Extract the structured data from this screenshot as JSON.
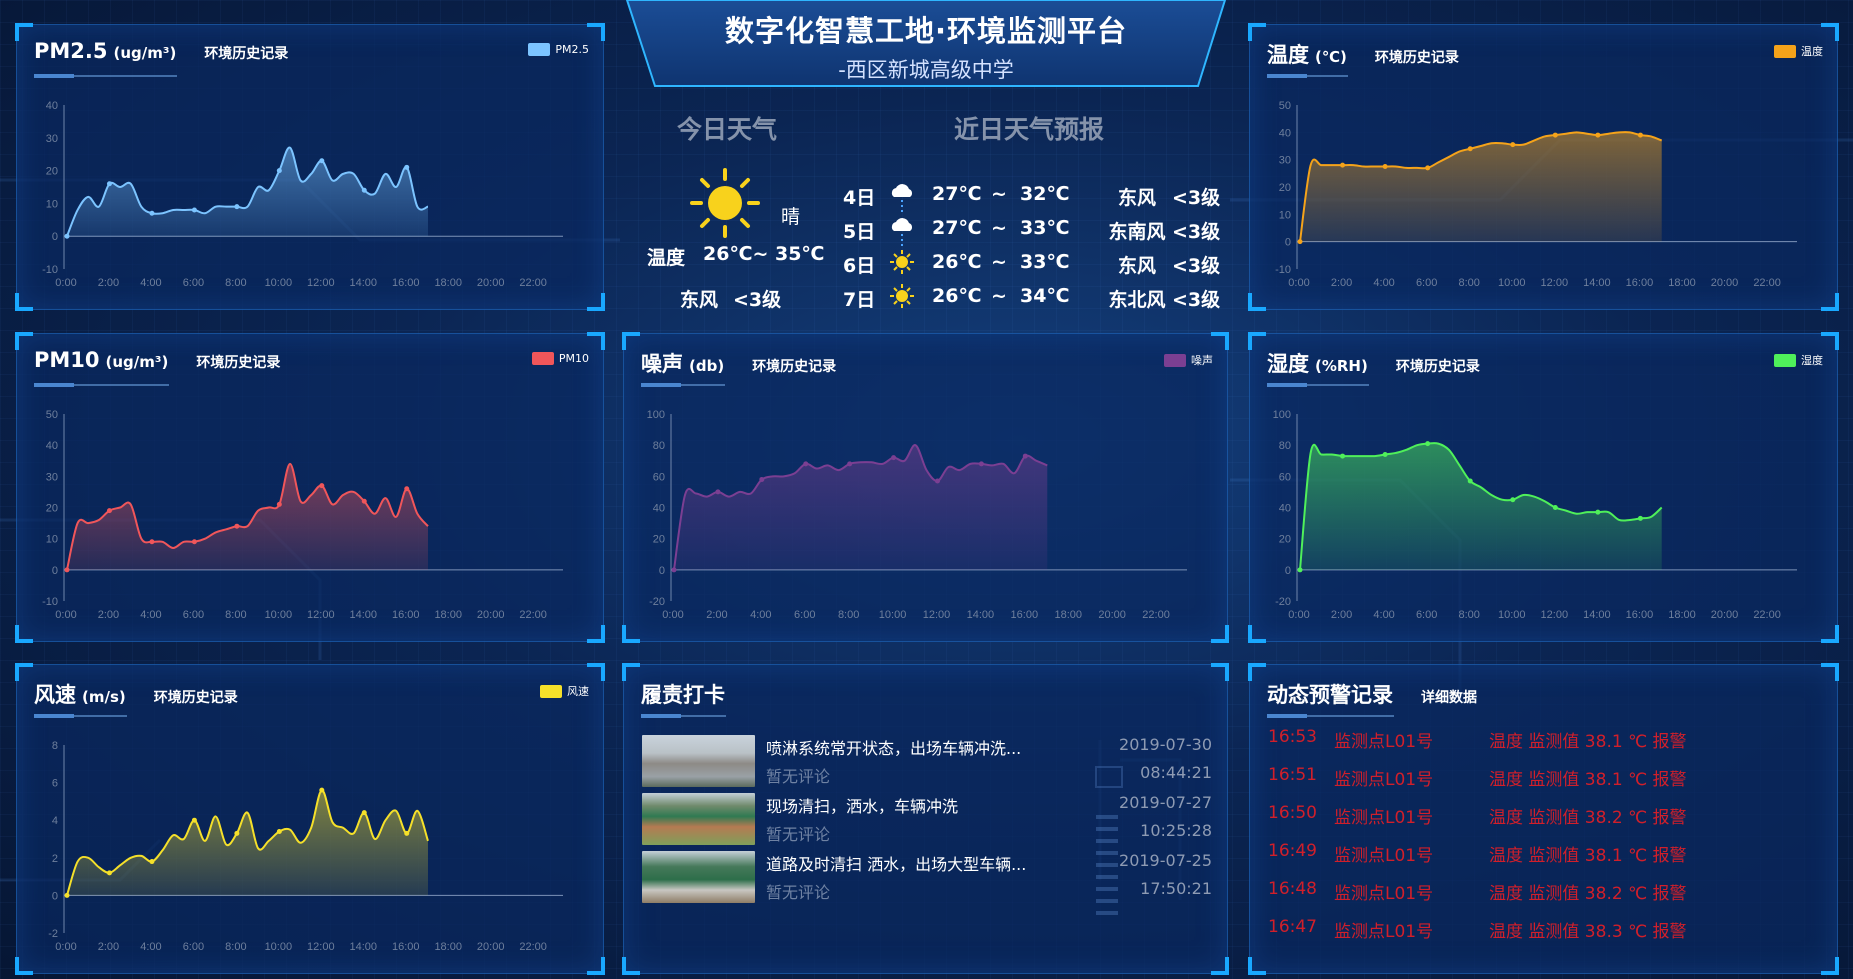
{
  "header": {
    "title": "数字化智慧工地·环境监测平台",
    "subtitle": "-西区新城高级中学"
  },
  "weather": {
    "today_title": "今日天气",
    "forecast_title": "近日天气预报",
    "today": {
      "icon": "sun-icon",
      "condition": "晴",
      "temp_label": "温度",
      "temp_range": "26℃~ 35℃",
      "wind": "东风",
      "wind_level": "<3级"
    },
    "forecast": [
      {
        "day": "4日",
        "icon": "cloud-rain-icon",
        "low": "27℃",
        "sep": "~",
        "high": "32℃",
        "wind": "东风",
        "level": "<3级"
      },
      {
        "day": "5日",
        "icon": "cloud-rain-icon",
        "low": "27℃",
        "sep": "~",
        "high": "33℃",
        "wind": "东南风",
        "level": "<3级"
      },
      {
        "day": "6日",
        "icon": "sun-icon",
        "low": "26℃",
        "sep": "~",
        "high": "33℃",
        "wind": "东风",
        "level": "<3级"
      },
      {
        "day": "7日",
        "icon": "sun-icon",
        "low": "26℃",
        "sep": "~",
        "high": "34℃",
        "wind": "东北风",
        "level": "<3级"
      }
    ]
  },
  "panels": {
    "pm25": {
      "title": "PM2.5",
      "unit": "(ug/m³)",
      "subtitle": "环境历史记录",
      "legend": "PM2.5"
    },
    "temp": {
      "title": "温度",
      "unit": "(℃)",
      "subtitle": "环境历史记录",
      "legend": "温度"
    },
    "pm10": {
      "title": "PM10",
      "unit": "(ug/m³)",
      "subtitle": "环境历史记录",
      "legend": "PM10"
    },
    "noise": {
      "title": "噪声",
      "unit": "(db)",
      "subtitle": "环境历史记录",
      "legend": "噪声"
    },
    "hum": {
      "title": "湿度",
      "unit": "(%RH)",
      "subtitle": "环境历史记录",
      "legend": "湿度"
    },
    "wind": {
      "title": "风速",
      "unit": "(m/s)",
      "subtitle": "环境历史记录",
      "legend": "风速"
    },
    "check": {
      "title": "履责打卡"
    },
    "alarm": {
      "title": "动态预警记录",
      "subtitle": "详细数据"
    }
  },
  "checkins": [
    {
      "title": "喷淋系统常开状态，出场车辆冲洗...",
      "comment": "暂无评论",
      "date": "2019-07-30",
      "time": "08:44:21"
    },
    {
      "title": "现场清扫，洒水，车辆冲洗",
      "comment": "暂无评论",
      "date": "2019-07-27",
      "time": "10:25:28"
    },
    {
      "title": "道路及时清扫 洒水，出场大型车辆...",
      "comment": "暂无评论",
      "date": "2019-07-25",
      "time": "17:50:21"
    }
  ],
  "alarms": [
    {
      "time": "16:53",
      "point": "监测点L01号",
      "msg": "温度 监测值 38.1 ℃ 报警"
    },
    {
      "time": "16:51",
      "point": "监测点L01号",
      "msg": "温度 监测值 38.1 ℃ 报警"
    },
    {
      "time": "16:50",
      "point": "监测点L01号",
      "msg": "温度 监测值 38.2 ℃ 报警"
    },
    {
      "time": "16:49",
      "point": "监测点L01号",
      "msg": "温度 监测值 38.1 ℃ 报警"
    },
    {
      "time": "16:48",
      "point": "监测点L01号",
      "msg": "温度 监测值 38.2 ℃ 报警"
    },
    {
      "time": "16:47",
      "point": "监测点L01号",
      "msg": "温度 监测值 38.3 ℃ 报警"
    }
  ],
  "colors": {
    "alarm": "#d11f2a",
    "accent": "#19a8ff"
  },
  "chart_data": [
    {
      "id": "pm25",
      "type": "area",
      "name": "PM2.5",
      "color": "#7cc4ff",
      "ylim": [
        -10,
        40
      ],
      "yticks": [
        "40",
        "30",
        "20",
        "10",
        "0",
        "-10"
      ],
      "xticks": [
        "0:00",
        "2:00",
        "4:00",
        "6:00",
        "8:00",
        "10:00",
        "12:00",
        "14:00",
        "16:00",
        "18:00",
        "20:00",
        "22:00"
      ],
      "x": [
        "0:00",
        "0:30",
        "1:00",
        "1:30",
        "2:00",
        "2:30",
        "3:00",
        "3:30",
        "4:00",
        "4:30",
        "5:00",
        "5:30",
        "6:00",
        "6:30",
        "7:00",
        "7:30",
        "8:00",
        "8:30",
        "9:00",
        "9:30",
        "10:00",
        "10:30",
        "11:00",
        "11:30",
        "12:00",
        "12:30",
        "13:00",
        "13:30",
        "14:00",
        "14:30",
        "15:00",
        "15:30",
        "16:00",
        "16:30",
        "17:00"
      ],
      "y": [
        0,
        8,
        12,
        9,
        16,
        15,
        16,
        9,
        7,
        7,
        8,
        8,
        8,
        7,
        9,
        9,
        9,
        9,
        15,
        14,
        20,
        27,
        17,
        19,
        23,
        17,
        19,
        19,
        14,
        13,
        19,
        15,
        21,
        9,
        9
      ]
    },
    {
      "id": "temp",
      "type": "area",
      "name": "温度",
      "color": "#f5a31a",
      "ylim": [
        -10,
        50
      ],
      "yticks": [
        "50",
        "40",
        "30",
        "20",
        "10",
        "0",
        "-10"
      ],
      "xticks": [
        "0:00",
        "2:00",
        "4:00",
        "6:00",
        "8:00",
        "10:00",
        "12:00",
        "14:00",
        "16:00",
        "18:00",
        "20:00",
        "22:00"
      ],
      "x": [
        "0:00",
        "0:30",
        "1:00",
        "1:30",
        "2:00",
        "2:30",
        "3:00",
        "3:30",
        "4:00",
        "4:30",
        "5:00",
        "5:30",
        "6:00",
        "6:30",
        "7:00",
        "7:30",
        "8:00",
        "8:30",
        "9:00",
        "9:30",
        "10:00",
        "10:30",
        "11:00",
        "11:30",
        "12:00",
        "12:30",
        "13:00",
        "13:30",
        "14:00",
        "14:30",
        "15:00",
        "15:30",
        "16:00",
        "16:30",
        "17:00"
      ],
      "y": [
        0,
        28,
        28,
        28,
        28,
        28,
        27.5,
        27.5,
        27.5,
        27.5,
        27,
        27,
        27,
        29,
        31,
        33,
        34,
        35,
        36,
        36,
        35.5,
        35.5,
        37,
        38.5,
        39,
        39.5,
        40,
        39.5,
        39,
        39.5,
        40,
        40,
        39,
        38.5,
        37
      ]
    },
    {
      "id": "pm10",
      "type": "area",
      "name": "PM10",
      "color": "#f0565a",
      "ylim": [
        -10,
        50
      ],
      "yticks": [
        "50",
        "40",
        "30",
        "20",
        "10",
        "0",
        "-10"
      ],
      "xticks": [
        "0:00",
        "2:00",
        "4:00",
        "6:00",
        "8:00",
        "10:00",
        "12:00",
        "14:00",
        "16:00",
        "18:00",
        "20:00",
        "22:00"
      ],
      "x": [
        "0:00",
        "0:30",
        "1:00",
        "1:30",
        "2:00",
        "2:30",
        "3:00",
        "3:30",
        "4:00",
        "4:30",
        "5:00",
        "5:30",
        "6:00",
        "6:30",
        "7:00",
        "7:30",
        "8:00",
        "8:30",
        "9:00",
        "9:30",
        "10:00",
        "10:30",
        "11:00",
        "11:30",
        "12:00",
        "12:30",
        "13:00",
        "13:30",
        "14:00",
        "14:30",
        "15:00",
        "15:30",
        "16:00",
        "16:30",
        "17:00"
      ],
      "y": [
        0,
        15,
        15,
        16,
        19,
        20,
        21,
        10,
        9,
        9,
        7,
        9,
        9,
        10,
        12,
        13,
        14,
        14,
        19,
        20,
        21,
        34,
        22,
        24,
        27,
        21,
        24,
        25,
        22,
        18,
        23,
        17,
        26,
        18,
        14
      ]
    },
    {
      "id": "noise",
      "type": "area",
      "name": "噪声",
      "color": "#7b3f92",
      "ylim": [
        -20,
        100
      ],
      "yticks": [
        "100",
        "80",
        "60",
        "40",
        "20",
        "0",
        "-20"
      ],
      "xticks": [
        "0:00",
        "2:00",
        "4:00",
        "6:00",
        "8:00",
        "10:00",
        "12:00",
        "14:00",
        "16:00",
        "18:00",
        "20:00",
        "22:00"
      ],
      "x": [
        "0:00",
        "0:30",
        "1:00",
        "1:30",
        "2:00",
        "2:30",
        "3:00",
        "3:30",
        "4:00",
        "4:30",
        "5:00",
        "5:30",
        "6:00",
        "6:30",
        "7:00",
        "7:30",
        "8:00",
        "8:30",
        "9:00",
        "9:30",
        "10:00",
        "10:30",
        "11:00",
        "11:30",
        "12:00",
        "12:30",
        "13:00",
        "13:30",
        "14:00",
        "14:30",
        "15:00",
        "15:30",
        "16:00",
        "16:30",
        "17:00"
      ],
      "y": [
        0,
        48,
        49,
        47,
        50,
        47,
        50,
        49,
        58,
        60,
        60,
        62,
        68,
        65,
        67,
        64,
        68,
        69,
        69,
        68,
        72,
        70,
        80,
        64,
        57,
        66,
        64,
        68,
        68,
        67,
        68,
        62,
        73,
        70,
        67
      ]
    },
    {
      "id": "hum",
      "type": "area",
      "name": "湿度",
      "color": "#4ff05a",
      "ylim": [
        -20,
        100
      ],
      "yticks": [
        "100",
        "80",
        "60",
        "40",
        "20",
        "0",
        "-20"
      ],
      "xticks": [
        "0:00",
        "2:00",
        "4:00",
        "6:00",
        "8:00",
        "10:00",
        "12:00",
        "14:00",
        "16:00",
        "18:00",
        "20:00",
        "22:00"
      ],
      "x": [
        "0:00",
        "0:30",
        "1:00",
        "1:30",
        "2:00",
        "2:30",
        "3:00",
        "3:30",
        "4:00",
        "4:30",
        "5:00",
        "5:30",
        "6:00",
        "6:30",
        "7:00",
        "7:30",
        "8:00",
        "8:30",
        "9:00",
        "9:30",
        "10:00",
        "10:30",
        "11:00",
        "11:30",
        "12:00",
        "12:30",
        "13:00",
        "13:30",
        "14:00",
        "14:30",
        "15:00",
        "15:30",
        "16:00",
        "16:30",
        "17:00"
      ],
      "y": [
        0,
        75,
        74,
        74,
        73,
        73,
        73,
        73,
        74,
        75,
        77,
        80,
        81,
        81,
        77,
        67,
        57,
        53,
        48,
        45,
        45,
        48,
        47,
        44,
        40,
        38,
        36,
        37,
        37,
        37,
        32,
        32,
        33,
        34,
        40
      ]
    },
    {
      "id": "wind",
      "type": "area",
      "name": "风速",
      "color": "#f5e02a",
      "ylim": [
        -2,
        8
      ],
      "yticks": [
        "8",
        "6",
        "4",
        "2",
        "0",
        "-2"
      ],
      "xticks": [
        "0:00",
        "2:00",
        "4:00",
        "6:00",
        "8:00",
        "10:00",
        "12:00",
        "14:00",
        "16:00",
        "18:00",
        "20:00",
        "22:00"
      ],
      "x": [
        "0:00",
        "0:30",
        "1:00",
        "1:30",
        "2:00",
        "2:30",
        "3:00",
        "3:30",
        "4:00",
        "4:30",
        "5:00",
        "5:30",
        "6:00",
        "6:30",
        "7:00",
        "7:30",
        "8:00",
        "8:30",
        "9:00",
        "9:30",
        "10:00",
        "10:30",
        "11:00",
        "11:30",
        "12:00",
        "12:30",
        "13:00",
        "13:30",
        "14:00",
        "14:30",
        "15:00",
        "15:30",
        "16:00",
        "16:30",
        "17:00"
      ],
      "y": [
        0,
        1.8,
        2,
        1.5,
        1.2,
        1.6,
        2,
        2.1,
        1.8,
        2.4,
        3.2,
        3,
        4,
        2.9,
        4.2,
        2.7,
        3.3,
        4.4,
        2.5,
        2.9,
        3.4,
        3.5,
        2.8,
        3.6,
        5.6,
        3.9,
        3.6,
        3.3,
        4.4,
        3,
        4,
        4.5,
        3.3,
        4.5,
        2.9
      ]
    }
  ]
}
